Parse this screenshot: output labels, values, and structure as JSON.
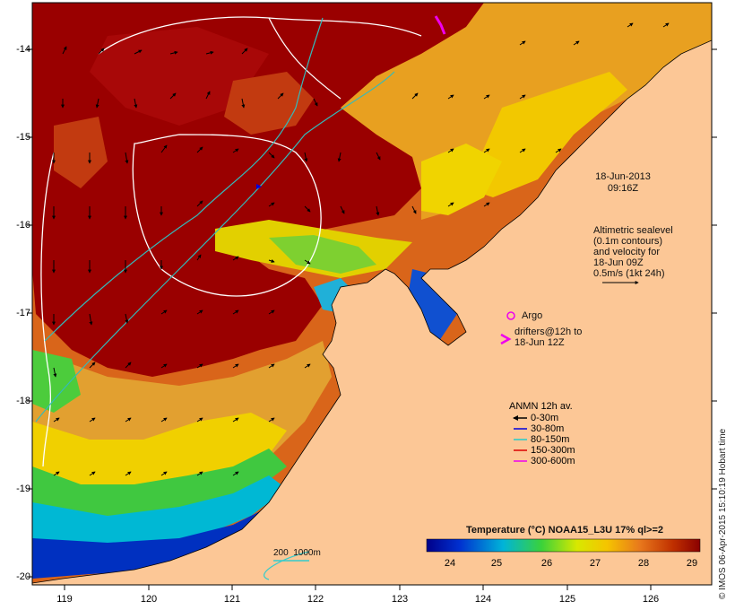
{
  "map": {
    "date": "18-Jun-2013",
    "time": "09:16Z",
    "x_ticks": [
      "119",
      "120",
      "121",
      "122",
      "123",
      "124",
      "125",
      "126"
    ],
    "y_ticks": [
      "-14",
      "-15",
      "-16",
      "-17",
      "-18",
      "-19",
      "-20"
    ],
    "colors": {
      "land": "#fcc796",
      "sst_warm": "#9a0000",
      "sst_mid": "#d24a00",
      "sst_orange": "#e88a1c",
      "sst_yellow": "#f2d000",
      "sst_green": "#4cd234",
      "sst_cyan": "#00bcd2",
      "sst_blue": "#001a9c",
      "isobath": "#33cccc",
      "sealevel_contour": "#ffffff"
    }
  },
  "annotations": {
    "altimetric": [
      "Altimetric sealevel",
      "(0.1m contours)",
      "and velocity for",
      "18-Jun 09Z",
      "0.5m/s (1kt 24h)"
    ],
    "argo_label": "Argo",
    "drifters": [
      "drifters@12h to",
      "18-Jun 12Z"
    ],
    "isobath_label": "200  1000m"
  },
  "legend": {
    "title": "ANMN 12h av.",
    "items": [
      {
        "label": "0-30m",
        "color": "#000000"
      },
      {
        "label": "30-80m",
        "color": "#0000dd"
      },
      {
        "label": "80-150m",
        "color": "#22cccc"
      },
      {
        "label": "150-300m",
        "color": "#dd0000"
      },
      {
        "label": "300-600m",
        "color": "#ee00ee"
      }
    ]
  },
  "colorbar": {
    "title": "Temperature (°C) NOAA15_L3U 17% ql>=2",
    "ticks": [
      "24",
      "25",
      "26",
      "27",
      "28",
      "29"
    ],
    "range": [
      23.2,
      29.1
    ]
  },
  "credit": "© IMOS 06-Apr-2015 15:10:19 Hobart time"
}
